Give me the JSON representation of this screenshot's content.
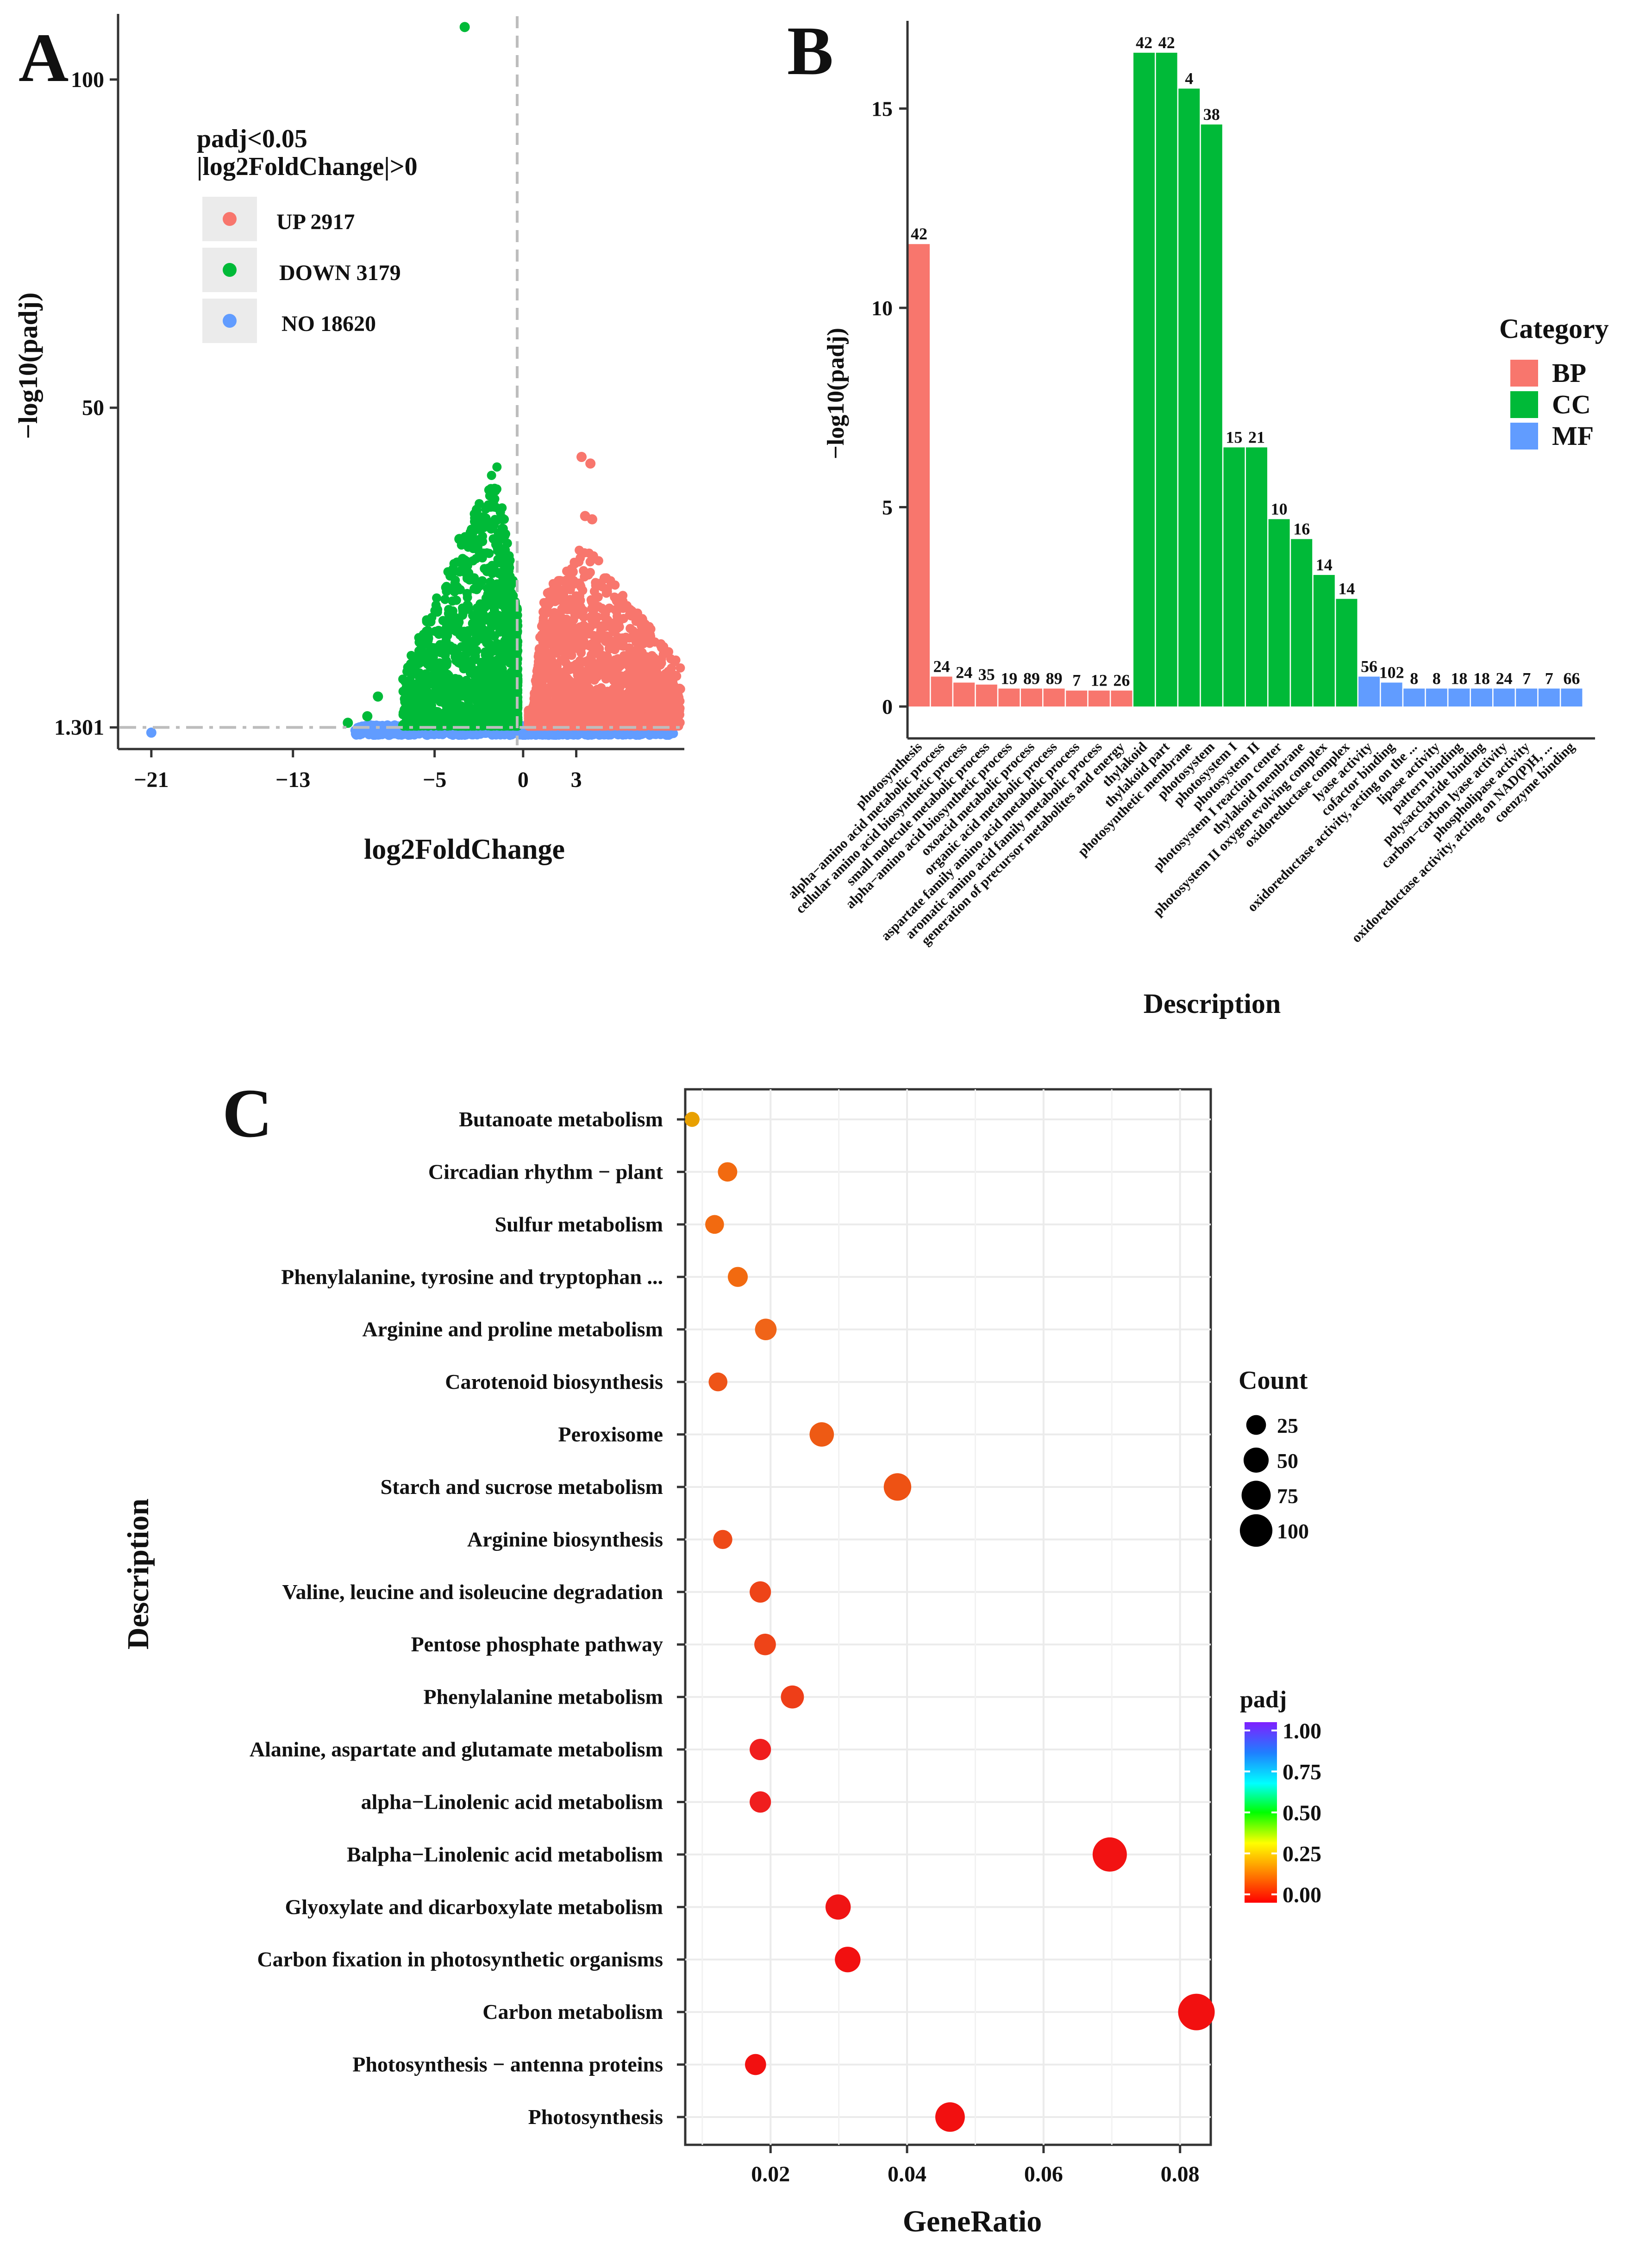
{
  "panels": {
    "A": "A",
    "B": "B",
    "C": "C"
  },
  "chart_data": [
    {
      "type": "scatter",
      "panel": "A",
      "title": "Volcano plot",
      "xlabel": "log2FoldChange",
      "ylabel": "−log10(padj)",
      "xticks": [
        -21,
        -13,
        -5,
        0,
        3
      ],
      "xtick_labels": [
        "−21",
        "−13",
        "−5",
        "0",
        "3"
      ],
      "yticks": [
        1.301,
        50,
        100
      ],
      "ytick_labels": [
        "1.301",
        "50",
        "100"
      ],
      "xlim": [
        -22.8,
        9
      ],
      "ylim": [
        -2,
        110
      ],
      "threshold": {
        "log2fc": 0,
        "padj_line": 1.301
      },
      "legend": {
        "title_line1": "padj<0.05",
        "title_line2": "|log2FoldChange|>0",
        "items": [
          {
            "label": "UP 2917",
            "color": "#F8766D"
          },
          {
            "label": "DOWN 3179",
            "color": "#00BA38"
          },
          {
            "label": "NO 18620",
            "color": "#619CFF"
          }
        ]
      },
      "highlight_points": [
        {
          "group": "DOWN",
          "x": -3.3,
          "y": 108
        },
        {
          "group": "NO",
          "x": -21,
          "y": 0.5
        },
        {
          "group": "UP",
          "x": 3.3,
          "y": 42.5
        },
        {
          "group": "UP",
          "x": 3.8,
          "y": 41.5
        },
        {
          "group": "UP",
          "x": 3.5,
          "y": 33.5
        },
        {
          "group": "UP",
          "x": 3.9,
          "y": 33
        },
        {
          "group": "UP",
          "x": 2.8,
          "y": 25
        },
        {
          "group": "UP",
          "x": 4.6,
          "y": 24
        },
        {
          "group": "UP",
          "x": 5.5,
          "y": 21
        },
        {
          "group": "UP",
          "x": 7.2,
          "y": 12
        },
        {
          "group": "UP",
          "x": 8.5,
          "y": 5.5
        },
        {
          "group": "DOWN",
          "x": -2.3,
          "y": 32
        },
        {
          "group": "DOWN",
          "x": -2.9,
          "y": 31
        },
        {
          "group": "DOWN",
          "x": -3.6,
          "y": 30
        },
        {
          "group": "DOWN",
          "x": -5.1,
          "y": 12
        },
        {
          "group": "DOWN",
          "x": -8.2,
          "y": 6
        },
        {
          "group": "DOWN",
          "x": -8.8,
          "y": 3
        },
        {
          "group": "DOWN",
          "x": -9.9,
          "y": 2
        }
      ]
    },
    {
      "type": "bar",
      "panel": "B",
      "xlabel": "Description",
      "ylabel": "−log10(padj)",
      "ylim": [
        -0.8,
        17.2
      ],
      "yticks": [
        0,
        5,
        10,
        15
      ],
      "legend": {
        "title": "Category",
        "items": [
          {
            "label": "BP",
            "color": "#F8766D"
          },
          {
            "label": "CC",
            "color": "#00BA38"
          },
          {
            "label": "MF",
            "color": "#619CFF"
          }
        ]
      },
      "colors": {
        "BP": "#F8766D",
        "CC": "#00BA38",
        "MF": "#619CFF"
      },
      "bars": [
        {
          "term": "photosynthesis",
          "category": "BP",
          "value": 11.6,
          "count": "42"
        },
        {
          "term": "alpha−amino acid metabolic process",
          "category": "BP",
          "value": 0.75,
          "count": "24"
        },
        {
          "term": "cellular amino acid biosynthetic process",
          "category": "BP",
          "value": 0.6,
          "count": "24"
        },
        {
          "term": "small molecule metabolic process",
          "category": "BP",
          "value": 0.55,
          "count": "35"
        },
        {
          "term": "alpha−amino acid biosynthetic process",
          "category": "BP",
          "value": 0.45,
          "count": "19"
        },
        {
          "term": "oxoacid metabolic process",
          "category": "BP",
          "value": 0.45,
          "count": "89"
        },
        {
          "term": "organic acid metabolic process",
          "category": "BP",
          "value": 0.45,
          "count": "89"
        },
        {
          "term": "aspartate family amino acid metabolic process",
          "category": "BP",
          "value": 0.4,
          "count": "7"
        },
        {
          "term": "aromatic amino acid family metabolic process",
          "category": "BP",
          "value": 0.4,
          "count": "12"
        },
        {
          "term": "generation of precursor metabolites and energy",
          "category": "BP",
          "value": 0.4,
          "count": "26"
        },
        {
          "term": "thylakoid",
          "category": "CC",
          "value": 16.4,
          "count": "42"
        },
        {
          "term": "thylakoid part",
          "category": "CC",
          "value": 16.4,
          "count": "42"
        },
        {
          "term": "photosynthetic membrane",
          "category": "CC",
          "value": 15.5,
          "count": "4"
        },
        {
          "term": "photosystem",
          "category": "CC",
          "value": 14.6,
          "count": "38"
        },
        {
          "term": "photosystem I",
          "category": "CC",
          "value": 6.5,
          "count": "15"
        },
        {
          "term": "photosystem II",
          "category": "CC",
          "value": 6.5,
          "count": "21"
        },
        {
          "term": "photosystem I reaction center",
          "category": "CC",
          "value": 4.7,
          "count": "10"
        },
        {
          "term": "thylakoid membrane",
          "category": "CC",
          "value": 4.2,
          "count": "16"
        },
        {
          "term": "photosystem II oxygen evolving complex",
          "category": "CC",
          "value": 3.3,
          "count": "14"
        },
        {
          "term": "oxidoreductase complex",
          "category": "CC",
          "value": 2.7,
          "count": "14"
        },
        {
          "term": "lyase activity",
          "category": "MF",
          "value": 0.75,
          "count": "56"
        },
        {
          "term": "cofactor binding",
          "category": "MF",
          "value": 0.6,
          "count": "102"
        },
        {
          "term": "oxidoreductase activity, acting on the ...",
          "category": "MF",
          "value": 0.45,
          "count": "8"
        },
        {
          "term": "lipase activity",
          "category": "MF",
          "value": 0.45,
          "count": "8"
        },
        {
          "term": "pattern binding",
          "category": "MF",
          "value": 0.45,
          "count": "18"
        },
        {
          "term": "polysaccharide binding",
          "category": "MF",
          "value": 0.45,
          "count": "18"
        },
        {
          "term": "carbon−carbon lyase activity",
          "category": "MF",
          "value": 0.45,
          "count": "24"
        },
        {
          "term": "phospholipase activity",
          "category": "MF",
          "value": 0.45,
          "count": "7"
        },
        {
          "term": "oxidoreductase activity, acting on NAD(P)H, ...",
          "category": "MF",
          "value": 0.45,
          "count": "7"
        },
        {
          "term": "coenzyme binding",
          "category": "MF",
          "value": 0.45,
          "count": "66"
        }
      ]
    },
    {
      "type": "scatter",
      "panel": "C",
      "subtype": "dotplot",
      "xlabel": "GeneRatio",
      "ylabel": "Description",
      "xlim": [
        0.0075,
        0.0845
      ],
      "xticks": [
        0.02,
        0.04,
        0.06,
        0.08
      ],
      "xtick_labels": [
        "0.02",
        "0.04",
        "0.06",
        "0.08"
      ],
      "size_legend": {
        "title": "Count",
        "values": [
          25,
          50,
          75,
          100
        ],
        "labels": [
          "25",
          "50",
          "75",
          "100"
        ]
      },
      "color_legend": {
        "title": "padj",
        "labels": [
          "1.00",
          "0.75",
          "0.50",
          "0.25",
          "0.00"
        ],
        "stops": [
          "#7F1FFF",
          "#1F7FFF",
          "#00FFFF",
          "#00FF00",
          "#FFFF00",
          "#FF7F00",
          "#FF0000"
        ]
      },
      "points": [
        {
          "term": "Butanoate metabolism",
          "gene_ratio": 0.0085,
          "count": 8,
          "padj": 0.26,
          "color": "#E8A000"
        },
        {
          "term": "Circadian rhythm − plant",
          "gene_ratio": 0.0137,
          "count": 20,
          "padj": 0.14,
          "color": "#F26A10"
        },
        {
          "term": "Sulfur metabolism",
          "gene_ratio": 0.0118,
          "count": 18,
          "padj": 0.14,
          "color": "#F26A10"
        },
        {
          "term": "Phenylalanine, tyrosine and tryptophan ...",
          "gene_ratio": 0.0152,
          "count": 22,
          "padj": 0.13,
          "color": "#F26A10"
        },
        {
          "term": "Arginine and proline metabolism",
          "gene_ratio": 0.0193,
          "count": 28,
          "padj": 0.12,
          "color": "#F06418"
        },
        {
          "term": "Carotenoid biosynthesis",
          "gene_ratio": 0.0123,
          "count": 18,
          "padj": 0.1,
          "color": "#EE5418"
        },
        {
          "term": "Peroxisome",
          "gene_ratio": 0.0275,
          "count": 40,
          "padj": 0.1,
          "color": "#EE5A14"
        },
        {
          "term": "Starch and sucrose metabolism",
          "gene_ratio": 0.0386,
          "count": 56,
          "padj": 0.1,
          "color": "#EE5214"
        },
        {
          "term": "Arginine biosynthesis",
          "gene_ratio": 0.013,
          "count": 19,
          "padj": 0.08,
          "color": "#EE4A18"
        },
        {
          "term": "Valine, leucine and isoleucine degradation",
          "gene_ratio": 0.0185,
          "count": 27,
          "padj": 0.07,
          "color": "#EE4418"
        },
        {
          "term": "Pentose phosphate pathway",
          "gene_ratio": 0.0192,
          "count": 28,
          "padj": 0.07,
          "color": "#EE4418"
        },
        {
          "term": "Phenylalanine metabolism",
          "gene_ratio": 0.0232,
          "count": 34,
          "padj": 0.06,
          "color": "#EE3E18"
        },
        {
          "term": "Alanine, aspartate and glutamate metabolism",
          "gene_ratio": 0.0185,
          "count": 27,
          "padj": 0.03,
          "color": "#F01E1E"
        },
        {
          "term": "alpha−Linolenic acid metabolism",
          "gene_ratio": 0.0185,
          "count": 27,
          "padj": 0.02,
          "color": "#F01E1E"
        },
        {
          "term": "Balpha−Linolenic acid metabolism",
          "gene_ratio": 0.0697,
          "count": 100,
          "padj": 0.01,
          "color": "#F21212"
        },
        {
          "term": "Glyoxylate and dicarboxylate metabolism",
          "gene_ratio": 0.0299,
          "count": 44,
          "padj": 0.01,
          "color": "#F01414"
        },
        {
          "term": "Carbon fixation in photosynthetic organisms",
          "gene_ratio": 0.0313,
          "count": 46,
          "padj": 0.0,
          "color": "#F21010"
        },
        {
          "term": "Carbon metabolism",
          "gene_ratio": 0.0824,
          "count": 118,
          "padj": 0.0,
          "color": "#F21010"
        },
        {
          "term": "Photosynthesis − antenna proteins",
          "gene_ratio": 0.0178,
          "count": 26,
          "padj": 0.0,
          "color": "#F21010"
        },
        {
          "term": "Photosynthesis",
          "gene_ratio": 0.0463,
          "count": 68,
          "padj": 0.0,
          "color": "#F21010"
        }
      ]
    }
  ]
}
